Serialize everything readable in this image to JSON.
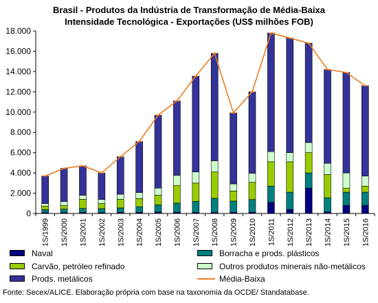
{
  "chart_data": {
    "type": "bar",
    "stacked": true,
    "title": "Brasil - Produtos da Indústria de Transformação de Média-Baixa",
    "subtitle": "Intensidade Tecnológica - Exportações (US$ milhões FOB)",
    "xlabel": "",
    "ylabel": "",
    "ylim": [
      0,
      18000
    ],
    "yticks": [
      "0",
      "2.000",
      "4.000",
      "6.000",
      "8.000",
      "10.000",
      "12.000",
      "14.000",
      "16.000",
      "18.000"
    ],
    "grid": false,
    "legend_position": "bottom",
    "categories": [
      "1S/1999",
      "1S/2000",
      "1S/2001",
      "1S/2002",
      "1S/2003",
      "1S/2004",
      "1S/2005",
      "1S/2006",
      "1S/2007",
      "1S/2008",
      "1S/2009",
      "1S/2010",
      "1S/2011",
      "1S/2012",
      "1S/2013",
      "1S/2014",
      "1S/2015",
      "1S/2016"
    ],
    "series": [
      {
        "name": "Naval",
        "color": "#000080",
        "values": [
          80,
          80,
          100,
          80,
          100,
          120,
          150,
          120,
          100,
          100,
          120,
          120,
          1100,
          400,
          2500,
          150,
          800,
          800
        ]
      },
      {
        "name": "Borracha e prods. plásticos",
        "color": "#007f7f",
        "values": [
          300,
          350,
          400,
          400,
          450,
          550,
          700,
          900,
          1100,
          1400,
          1100,
          1250,
          1600,
          1700,
          1500,
          1400,
          1300,
          1300
        ]
      },
      {
        "name": "Carvão, petróleo refinado",
        "color": "#99cc00",
        "values": [
          350,
          350,
          900,
          500,
          850,
          800,
          950,
          1750,
          1800,
          2600,
          1000,
          1700,
          2400,
          3000,
          2000,
          2300,
          400,
          600
        ]
      },
      {
        "name": "Outros produtos minerais não-metálicos",
        "color": "#ccffcc",
        "values": [
          250,
          400,
          400,
          400,
          500,
          600,
          700,
          1000,
          1100,
          1100,
          700,
          900,
          1000,
          900,
          1000,
          1100,
          1500,
          1000
        ]
      },
      {
        "name": "Prods. metálicos",
        "color": "#333399",
        "values": [
          2720,
          3270,
          2900,
          2620,
          3700,
          5030,
          7200,
          7330,
          9450,
          10600,
          7000,
          8030,
          11700,
          11300,
          9800,
          9250,
          9900,
          8900
        ]
      }
    ],
    "line": {
      "name": "Média-Baixa",
      "color": "#ee7a1e",
      "values": [
        3700,
        4450,
        4700,
        4000,
        5600,
        7100,
        9700,
        11100,
        13550,
        15800,
        9920,
        12000,
        17800,
        17300,
        16800,
        14200,
        13900,
        12600
      ]
    }
  },
  "legend": {
    "naval": "Naval",
    "borracha": "Borracha e prods. plásticos",
    "carvao": "Carvão, petróleo refinado",
    "outros": "Outros produtos minerais não-metálicos",
    "metalicos": "Prods. metálicos",
    "media": "Média-Baixa"
  },
  "source": "Fonte: Secex/ALICE. Elaboração própria com base na taxonomia da OCDE/ Standatabase."
}
